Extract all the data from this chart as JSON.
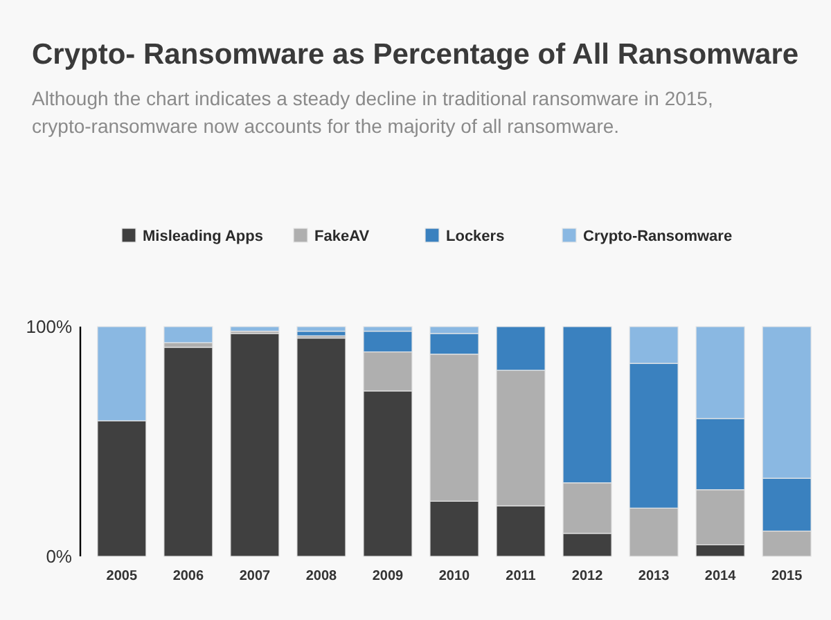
{
  "chart_data": {
    "type": "bar",
    "stacked": true,
    "title": "Crypto- Ransomware as Percentage of All Ransomware",
    "subtitle": "Although the chart indicates a steady decline in traditional ransomware in 2015, crypto-ransomware now accounts for the majority of all ransomware.",
    "categories": [
      "2005",
      "2006",
      "2007",
      "2008",
      "2009",
      "2010",
      "2011",
      "2012",
      "2013",
      "2014",
      "2015"
    ],
    "series": [
      {
        "name": "Misleading Apps",
        "color": "#404040",
        "values": [
          59,
          91,
          97,
          95,
          72,
          24,
          22,
          10,
          0,
          5,
          0
        ]
      },
      {
        "name": "FakeAV",
        "color": "#afafaf",
        "values": [
          0,
          2,
          1,
          1,
          17,
          64,
          59,
          22,
          21,
          24,
          11
        ]
      },
      {
        "name": "Lockers",
        "color": "#3a81bf",
        "values": [
          0,
          0,
          0,
          2,
          9,
          9,
          19,
          68,
          63,
          31,
          23
        ]
      },
      {
        "name": "Crypto-Ransomware",
        "color": "#8ab8e2",
        "values": [
          41,
          7,
          2,
          2,
          2,
          3,
          0,
          0,
          16,
          40,
          66
        ]
      }
    ],
    "ylim": [
      0,
      100
    ],
    "yticks": [
      {
        "value": 0,
        "label": "0%"
      },
      {
        "value": 100,
        "label": "100%"
      }
    ],
    "grid": false,
    "legend": "top"
  }
}
